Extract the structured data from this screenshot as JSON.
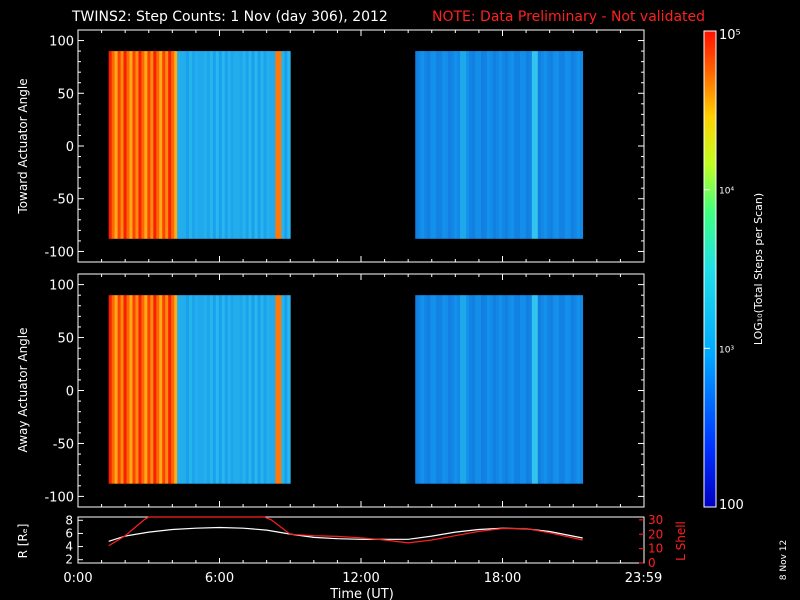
{
  "header": {
    "title": "TWINS2: Step Counts:  1 Nov (day 306), 2012",
    "note": "NOTE: Data Preliminary - Not validated"
  },
  "side_stamp": "8 Nov 12",
  "colors": {
    "background": "#000000",
    "axes": "#ffffff",
    "lshell": "#ff2020",
    "r_line": "#ffffff"
  },
  "chart_data": [
    {
      "type": "heatmap",
      "panel": "top",
      "ylabel": "Toward Actuator Angle",
      "xlim": [
        0,
        24
      ],
      "ylim": [
        -110,
        110
      ],
      "y_ticks": [
        "100",
        "50",
        "0",
        "-50",
        "-100"
      ],
      "y_tick_values": [
        100,
        50,
        0,
        -50,
        -100
      ],
      "data_blocks_hours": [
        [
          1.3,
          9.0
        ],
        [
          14.3,
          21.4
        ]
      ],
      "data_angle_range": [
        -88,
        90
      ]
    },
    {
      "type": "heatmap",
      "panel": "middle",
      "ylabel": "Away Actuator Angle",
      "xlim": [
        0,
        24
      ],
      "ylim": [
        -110,
        110
      ],
      "y_ticks": [
        "100",
        "50",
        "0",
        "-50",
        "-100"
      ],
      "y_tick_values": [
        100,
        50,
        0,
        -50,
        -100
      ],
      "data_blocks_hours": [
        [
          1.3,
          9.0
        ],
        [
          14.3,
          21.4
        ]
      ],
      "data_angle_range": [
        -88,
        90
      ]
    },
    {
      "type": "line",
      "panel": "bottom",
      "ylabel_left": "R [Rₑ]",
      "ylabel_right": "L Shell",
      "xlabel": "Time (UT)",
      "x_ticks": [
        "0:00",
        "6:00",
        "12:00",
        "18:00",
        "23:59"
      ],
      "x_tick_values": [
        0,
        6,
        12,
        18,
        23.98
      ],
      "left_ticks": [
        "8",
        "6",
        "4",
        "2"
      ],
      "left_tick_values": [
        8,
        6,
        4,
        2
      ],
      "left_ylim": [
        1.5,
        8.5
      ],
      "right_ticks": [
        "30",
        "20",
        "10",
        "0"
      ],
      "right_tick_values": [
        30,
        20,
        10,
        0
      ],
      "right_ylim": [
        0,
        32
      ],
      "series": [
        {
          "color": "#ffffff",
          "x": [
            1.3,
            2,
            3,
            4,
            5,
            6,
            7,
            8,
            9,
            10,
            11,
            12,
            13,
            14,
            15,
            16,
            17,
            18,
            19,
            20,
            21.4
          ],
          "y": [
            4.8,
            5.6,
            6.2,
            6.6,
            6.8,
            6.9,
            6.8,
            6.5,
            5.9,
            5.4,
            5.2,
            5.1,
            5.1,
            5.1,
            5.6,
            6.2,
            6.6,
            6.8,
            6.7,
            6.3,
            5.3
          ]
        },
        {
          "color": "#ff2020",
          "axis": "right",
          "x": [
            1.3,
            2,
            2.8,
            3.0,
            7.9,
            8.2,
            9,
            10,
            11,
            12,
            13,
            14,
            15,
            16,
            17,
            18,
            19,
            20,
            21.4
          ],
          "y": [
            12,
            19,
            30,
            32,
            32,
            30,
            20,
            19,
            18.5,
            17.5,
            16,
            14,
            16,
            19,
            22,
            24,
            24,
            21,
            16
          ]
        }
      ]
    },
    {
      "type": "colorbar",
      "label": "LOG₁₀(Total Steps per Scan)",
      "tick_labels": [
        "10⁵",
        "10⁴",
        "10³",
        "100"
      ],
      "tick_values": [
        100000,
        10000,
        1000,
        100
      ],
      "scale": "log",
      "range": [
        100,
        100000
      ]
    }
  ]
}
